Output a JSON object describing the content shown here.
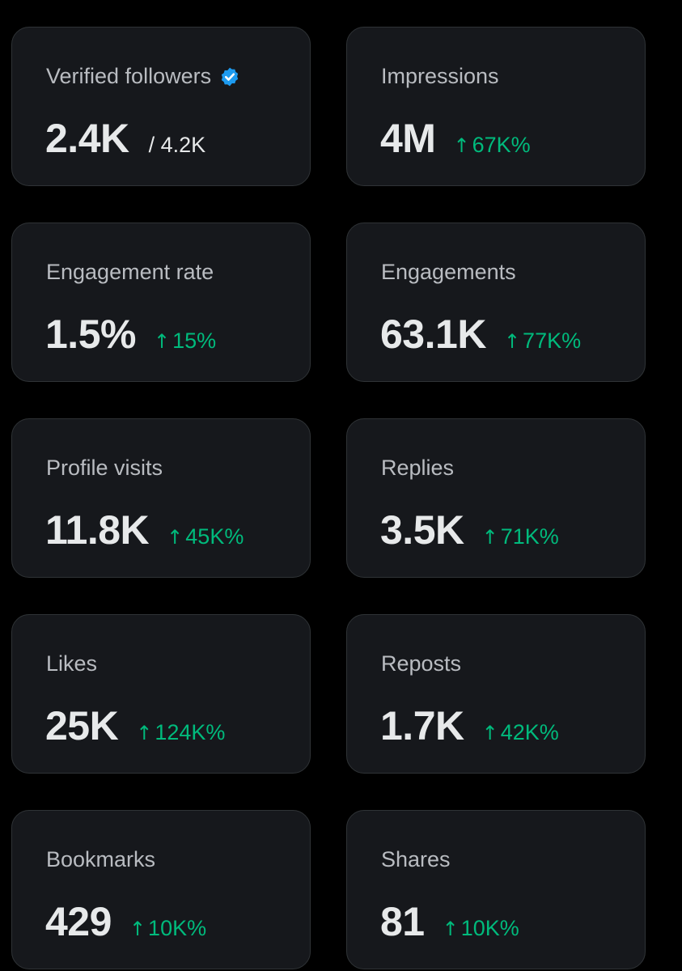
{
  "colors": {
    "background": "#000000",
    "card_background": "#16181c",
    "card_border": "#2f3336",
    "label": "#b9bcc1",
    "value": "#e7e9ea",
    "positive_change": "#00ba7c",
    "verified_badge": "#1d9bf0"
  },
  "cards": [
    {
      "label": "Verified followers",
      "value": "2.4K",
      "secondary": "/ 4.2K",
      "icon": "verified-badge-icon"
    },
    {
      "label": "Impressions",
      "value": "4M",
      "change": "67K%",
      "change_icon": "up-arrow-icon"
    },
    {
      "label": "Engagement rate",
      "value": "1.5%",
      "change": "15%",
      "change_icon": "up-arrow-icon"
    },
    {
      "label": "Engagements",
      "value": "63.1K",
      "change": "77K%",
      "change_icon": "up-arrow-icon"
    },
    {
      "label": "Profile visits",
      "value": "11.8K",
      "change": "45K%",
      "change_icon": "up-arrow-icon"
    },
    {
      "label": "Replies",
      "value": "3.5K",
      "change": "71K%",
      "change_icon": "up-arrow-icon"
    },
    {
      "label": "Likes",
      "value": "25K",
      "change": "124K%",
      "change_icon": "up-arrow-icon"
    },
    {
      "label": "Reposts",
      "value": "1.7K",
      "change": "42K%",
      "change_icon": "up-arrow-icon"
    },
    {
      "label": "Bookmarks",
      "value": "429",
      "change": "10K%",
      "change_icon": "up-arrow-icon"
    },
    {
      "label": "Shares",
      "value": "81",
      "change": "10K%",
      "change_icon": "up-arrow-icon"
    }
  ]
}
